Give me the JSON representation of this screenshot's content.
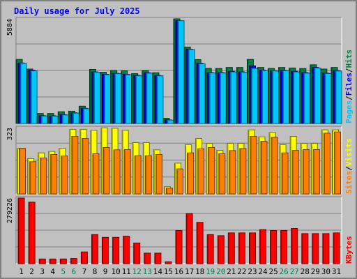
{
  "title": "Daily usage for July 2025",
  "chart_data": [
    {
      "type": "bar",
      "panel": "hits-files-pages",
      "ylim": [
        0,
        5884
      ],
      "y_tick_label": "5884",
      "categories": [
        "1",
        "2",
        "3",
        "4",
        "5",
        "6",
        "7",
        "8",
        "9",
        "10",
        "11",
        "12",
        "13",
        "14",
        "15",
        "16",
        "17",
        "18",
        "19",
        "20",
        "21",
        "22",
        "23",
        "24",
        "25",
        "26",
        "27",
        "28",
        "29",
        "30",
        "31"
      ],
      "legend": [
        {
          "name": "Pages",
          "color": "#00c8ff"
        },
        {
          "name": "Files",
          "color": "#0000ff"
        },
        {
          "name": "Hits",
          "color": "#008040"
        }
      ],
      "legend_separator": "/",
      "series": [
        {
          "name": "Hits",
          "color": "#008040",
          "values": [
            3600,
            3060,
            560,
            560,
            660,
            690,
            970,
            3040,
            2880,
            2980,
            2960,
            2800,
            2990,
            2850,
            290,
            5884,
            4300,
            3590,
            3100,
            3090,
            3150,
            3150,
            3600,
            3150,
            3090,
            3150,
            3120,
            3090,
            3300,
            3060,
            3150
          ]
        },
        {
          "name": "Files",
          "color": "#0000ff",
          "values": [
            3400,
            3000,
            440,
            430,
            500,
            600,
            850,
            2900,
            2760,
            2820,
            2760,
            2700,
            2850,
            2700,
            200,
            5780,
            4180,
            3380,
            2860,
            2860,
            2930,
            2900,
            3240,
            3000,
            2960,
            2980,
            2930,
            2860,
            3150,
            2830,
            2970
          ]
        },
        {
          "name": "Pages",
          "color": "#00c8ff",
          "values": [
            3380,
            2960,
            420,
            410,
            480,
            580,
            830,
            2880,
            2740,
            2800,
            2740,
            2680,
            2830,
            2680,
            190,
            5780,
            4160,
            3350,
            2840,
            2840,
            2900,
            2880,
            3100,
            2980,
            2950,
            2960,
            2900,
            2830,
            3120,
            2810,
            2950
          ]
        }
      ]
    },
    {
      "type": "bar",
      "panel": "visits-sites",
      "ylim": [
        0,
        323
      ],
      "y_tick_label": "323",
      "legend": [
        {
          "name": "Sites",
          "color": "#ff8000"
        },
        {
          "name": "Visits",
          "color": "#ffff00"
        }
      ],
      "legend_separator": "/",
      "series": [
        {
          "name": "Visits",
          "color": "#ffff00",
          "values": [
            222,
            172,
            200,
            207,
            222,
            315,
            315,
            310,
            322,
            320,
            310,
            250,
            250,
            215,
            35,
            150,
            240,
            270,
            246,
            212,
            246,
            246,
            312,
            278,
            300,
            240,
            280,
            246,
            246,
            312,
            312
          ]
        },
        {
          "name": "Sites",
          "color": "#ff8000",
          "values": [
            222,
            157,
            175,
            192,
            185,
            280,
            270,
            196,
            226,
            215,
            216,
            186,
            186,
            192,
            28,
            122,
            200,
            220,
            226,
            196,
            211,
            221,
            280,
            256,
            276,
            200,
            212,
            216,
            216,
            296,
            302
          ]
        }
      ]
    },
    {
      "type": "bar",
      "panel": "kbytes",
      "ylim": [
        0,
        279226
      ],
      "y_tick_label": "279226",
      "legend": [
        {
          "name": "KBytes",
          "color": "#ff0000"
        }
      ],
      "series": [
        {
          "name": "KBytes",
          "color": "#ff0000",
          "values": [
            279226,
            262000,
            20000,
            20000,
            20000,
            22000,
            50000,
            124000,
            112000,
            112000,
            117000,
            88000,
            45000,
            45000,
            8000,
            141000,
            213000,
            176000,
            124000,
            119000,
            131000,
            131000,
            131000,
            145000,
            141000,
            141000,
            150000,
            128000,
            128000,
            128000,
            131000
          ]
        }
      ]
    }
  ],
  "weekend_days": [
    "5",
    "6",
    "12",
    "13",
    "19",
    "20",
    "26",
    "27"
  ],
  "colors": {
    "background": "#c0c0c0",
    "title": "#0000ff",
    "weekday_label": "#000000",
    "weekend_label": "#00805a",
    "gridline": "#808080"
  }
}
